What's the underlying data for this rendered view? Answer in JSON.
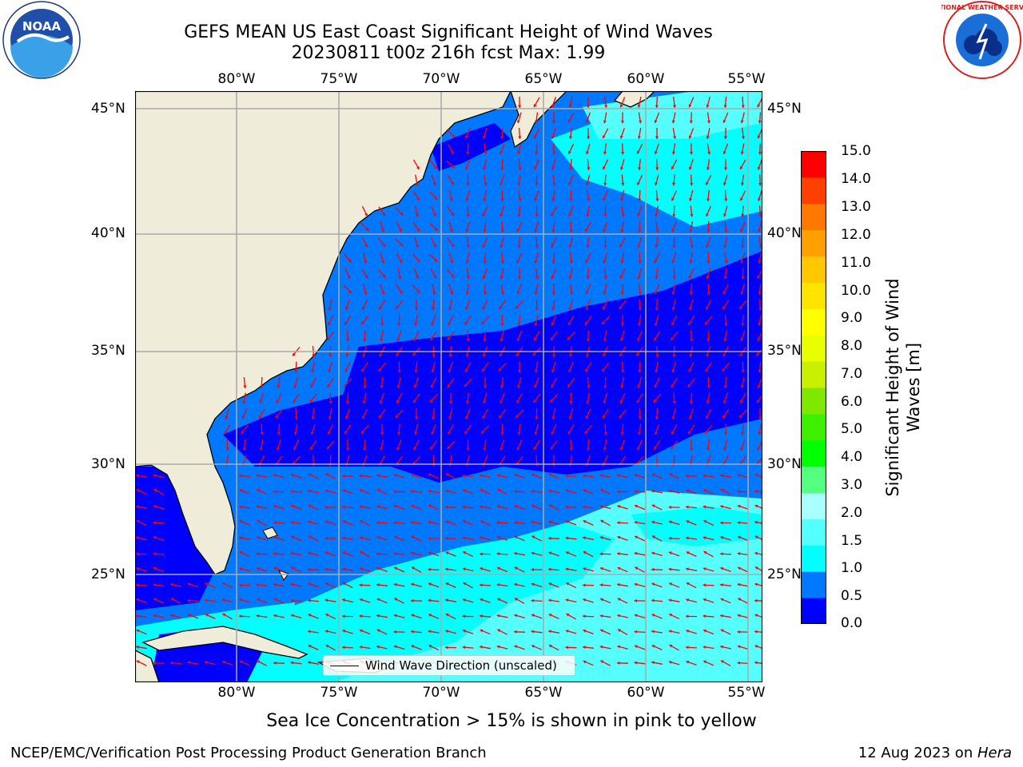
{
  "header": {
    "title_line1": "GEFS MEAN US East Coast Significant Height of Wind Waves",
    "title_line2": "20230811 t00z 216h fcst   Max: 1.99"
  },
  "map": {
    "longitude_labels": [
      "80°W",
      "75°W",
      "70°W",
      "65°W",
      "60°W",
      "55°W"
    ],
    "latitude_labels": [
      "45°N",
      "40°N",
      "35°N",
      "30°N",
      "25°N"
    ],
    "legend_label": "Wind Wave Direction (unscaled)",
    "colors": {
      "land": "#efedd9",
      "band_0_05": "#0000ff",
      "band_05_1": "#0078ff",
      "band_1_15": "#00ffff",
      "band_15_2": "#55ffff",
      "arrow": "#ff0000",
      "grid": "#aaaaaa"
    }
  },
  "colorbar": {
    "title_line1": "Significant Height of Wind",
    "title_line2": "Waves [m]",
    "ticks": [
      "15.0",
      "14.0",
      "13.0",
      "12.0",
      "11.0",
      "10.0",
      "9.0",
      "8.0",
      "7.0",
      "6.0",
      "5.0",
      "4.0",
      "3.0",
      "2.0",
      "1.5",
      "1.0",
      "0.5",
      "0.0"
    ],
    "colors": [
      "#0000ff",
      "#0078ff",
      "#00ffff",
      "#55ffff",
      "#aaffff",
      "#55ff80",
      "#00ff00",
      "#3cf000",
      "#80e800",
      "#c8f000",
      "#e8ff00",
      "#ffff00",
      "#ffe400",
      "#ffc800",
      "#ffa000",
      "#ff7800",
      "#ff4000",
      "#ff0000"
    ]
  },
  "footer": {
    "note": "Sea Ice Concentration > 15% is shown in pink to yellow",
    "left": "NCEP/EMC/Verification Post Processing Product Generation Branch",
    "right_prefix": "12 Aug 2023 on ",
    "right_host": "Hera"
  },
  "logos": {
    "noaa": "NOAA",
    "nws": "NATIONAL WEATHER SERVICE"
  }
}
